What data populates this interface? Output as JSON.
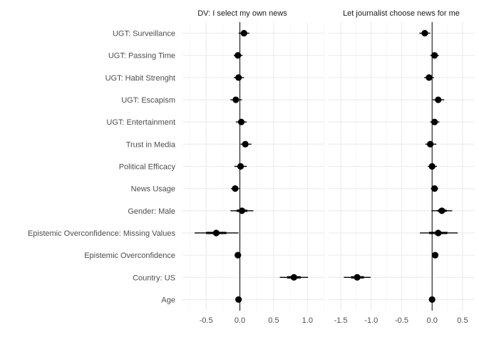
{
  "chart_data": {
    "type": "coefficient-plot",
    "grid": true,
    "y_categories": [
      "UGT: Surveillance",
      "UGT: Passing Time",
      "UGT: Habit Strenght",
      "UGT: Escapism",
      "UGT: Entertainment",
      "Trust in Media",
      "Political Efficacy",
      "News Usage",
      "Gender: Male",
      "Epistemic Overconfidence: Missing Values",
      "Epistemic Overconfidence",
      "Country: US",
      "Age"
    ],
    "panels": [
      {
        "title": "DV: I select my own news",
        "xlim": [
          -0.85,
          1.25
        ],
        "xticks": [
          -0.5,
          0.0,
          0.5,
          1.0
        ],
        "xtick_labels": [
          "-0.5",
          "0.0",
          "0.5",
          "1.0"
        ],
        "points": [
          {
            "category": "UGT: Surveillance",
            "estimate": 0.06,
            "inner": [
              0.02,
              0.1
            ],
            "outer": [
              -0.02,
              0.14
            ]
          },
          {
            "category": "UGT: Passing Time",
            "estimate": -0.03,
            "inner": [
              -0.06,
              0.01
            ],
            "outer": [
              -0.09,
              0.04
            ]
          },
          {
            "category": "UGT: Habit Strenght",
            "estimate": -0.02,
            "inner": [
              -0.05,
              0.02
            ],
            "outer": [
              -0.09,
              0.06
            ]
          },
          {
            "category": "UGT: Escapism",
            "estimate": -0.06,
            "inner": [
              -0.1,
              -0.02
            ],
            "outer": [
              -0.14,
              0.03
            ]
          },
          {
            "category": "UGT: Entertainment",
            "estimate": 0.02,
            "inner": [
              -0.02,
              0.06
            ],
            "outer": [
              -0.06,
              0.1
            ]
          },
          {
            "category": "Trust in Media",
            "estimate": 0.08,
            "inner": [
              0.04,
              0.12
            ],
            "outer": [
              0.01,
              0.17
            ]
          },
          {
            "category": "Political Efficacy",
            "estimate": 0.01,
            "inner": [
              -0.03,
              0.05
            ],
            "outer": [
              -0.08,
              0.1
            ]
          },
          {
            "category": "News Usage",
            "estimate": -0.07,
            "inner": [
              -0.1,
              -0.04
            ],
            "outer": [
              -0.13,
              -0.01
            ]
          },
          {
            "category": "Gender: Male",
            "estimate": 0.03,
            "inner": [
              -0.05,
              0.11
            ],
            "outer": [
              -0.14,
              0.2
            ]
          },
          {
            "category": "Epistemic Overconfidence: Missing Values",
            "estimate": -0.35,
            "inner": [
              -0.5,
              -0.2
            ],
            "outer": [
              -0.67,
              -0.02
            ]
          },
          {
            "category": "Epistemic Overconfidence",
            "estimate": -0.03,
            "inner": [
              -0.04,
              -0.02
            ],
            "outer": [
              -0.05,
              -0.01
            ]
          },
          {
            "category": "Country: US",
            "estimate": 0.8,
            "inner": [
              0.7,
              0.9
            ],
            "outer": [
              0.59,
              1.01
            ]
          },
          {
            "category": "Age",
            "estimate": -0.02,
            "inner": [
              -0.03,
              -0.01
            ],
            "outer": [
              -0.04,
              0.0
            ]
          }
        ]
      },
      {
        "title": "Let journalist choose news for me",
        "xlim": [
          -1.7,
          0.7
        ],
        "xticks": [
          -1.5,
          -1.0,
          -0.5,
          0.0,
          0.5
        ],
        "xtick_labels": [
          "-1.5",
          "-1.0",
          "-0.5",
          "0.0",
          "0.5"
        ],
        "points": [
          {
            "category": "UGT: Surveillance",
            "estimate": -0.12,
            "inner": [
              -0.16,
              -0.08
            ],
            "outer": [
              -0.21,
              -0.03
            ]
          },
          {
            "category": "UGT: Passing Time",
            "estimate": 0.04,
            "inner": [
              0.01,
              0.07
            ],
            "outer": [
              -0.03,
              0.11
            ]
          },
          {
            "category": "UGT: Habit Strenght",
            "estimate": -0.05,
            "inner": [
              -0.09,
              -0.01
            ],
            "outer": [
              -0.13,
              0.03
            ]
          },
          {
            "category": "UGT: Escapism",
            "estimate": 0.1,
            "inner": [
              0.06,
              0.14
            ],
            "outer": [
              0.01,
              0.2
            ]
          },
          {
            "category": "UGT: Entertainment",
            "estimate": 0.04,
            "inner": [
              0.01,
              0.07
            ],
            "outer": [
              -0.03,
              0.12
            ]
          },
          {
            "category": "Trust in Media",
            "estimate": -0.03,
            "inner": [
              -0.06,
              0.01
            ],
            "outer": [
              -0.11,
              0.07
            ]
          },
          {
            "category": "Political Efficacy",
            "estimate": 0.0,
            "inner": [
              -0.03,
              0.04
            ],
            "outer": [
              -0.07,
              0.08
            ]
          },
          {
            "category": "News Usage",
            "estimate": 0.04,
            "inner": [
              0.01,
              0.07
            ],
            "outer": [
              -0.02,
              0.1
            ]
          },
          {
            "category": "Gender: Male",
            "estimate": 0.16,
            "inner": [
              0.09,
              0.24
            ],
            "outer": [
              -0.01,
              0.33
            ]
          },
          {
            "category": "Epistemic Overconfidence: Missing Values",
            "estimate": 0.1,
            "inner": [
              -0.05,
              0.25
            ],
            "outer": [
              -0.2,
              0.42
            ]
          },
          {
            "category": "Epistemic Overconfidence",
            "estimate": 0.05,
            "inner": [
              0.04,
              0.06
            ],
            "outer": [
              0.03,
              0.07
            ]
          },
          {
            "category": "Country: US",
            "estimate": -1.23,
            "inner": [
              -1.33,
              -1.12
            ],
            "outer": [
              -1.45,
              -1.01
            ]
          },
          {
            "category": "Age",
            "estimate": 0.0,
            "inner": [
              -0.01,
              0.01
            ],
            "outer": [
              -0.02,
              0.02
            ]
          }
        ]
      }
    ]
  }
}
